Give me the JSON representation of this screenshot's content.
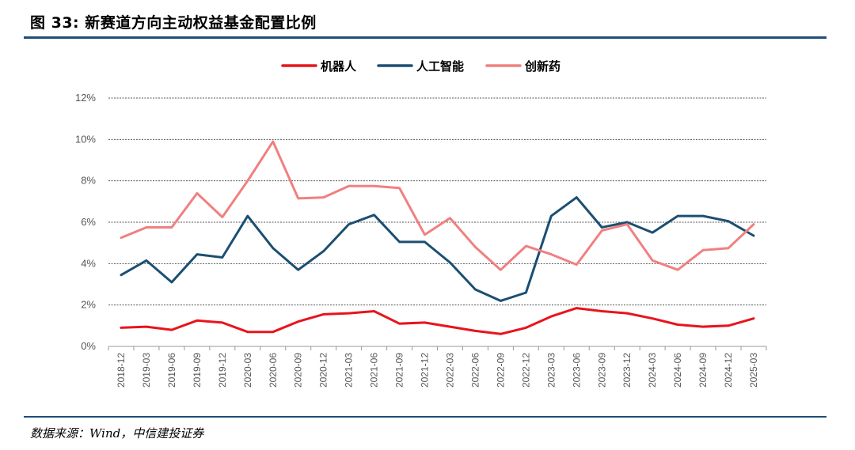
{
  "header": {
    "title": "图 33: 新赛道方向主动权益基金配置比例"
  },
  "footer": {
    "source": "数据来源：Wind，中信建投证券"
  },
  "chart_data": {
    "type": "line",
    "categories": [
      "2018-12",
      "2019-03",
      "2019-06",
      "2019-09",
      "2019-12",
      "2020-03",
      "2020-06",
      "2020-09",
      "2020-12",
      "2021-03",
      "2021-06",
      "2021-09",
      "2021-12",
      "2022-03",
      "2022-06",
      "2022-09",
      "2022-12",
      "2023-03",
      "2023-06",
      "2023-09",
      "2023-12",
      "2024-03",
      "2024-06",
      "2024-09",
      "2024-12",
      "2025-03"
    ],
    "series": [
      {
        "name": "机器人",
        "color": "#e8141c",
        "values": [
          0.9,
          0.95,
          0.8,
          1.25,
          1.15,
          0.7,
          0.7,
          1.2,
          1.55,
          1.6,
          1.7,
          1.1,
          1.15,
          0.95,
          0.75,
          0.6,
          0.9,
          1.45,
          1.85,
          1.7,
          1.6,
          1.35,
          1.05,
          0.95,
          1.0,
          1.35
        ]
      },
      {
        "name": "人工智能",
        "color": "#1b4f72",
        "values": [
          3.45,
          4.15,
          3.1,
          4.45,
          4.3,
          6.3,
          4.75,
          3.7,
          4.6,
          5.9,
          6.35,
          5.05,
          5.05,
          4.05,
          2.75,
          2.2,
          2.6,
          6.3,
          7.2,
          5.75,
          6.0,
          5.5,
          6.3,
          6.3,
          6.05,
          5.35
        ]
      },
      {
        "name": "创新药",
        "color": "#f08080",
        "values": [
          5.25,
          5.75,
          5.75,
          7.4,
          6.25,
          8.0,
          9.9,
          7.15,
          7.2,
          7.75,
          7.75,
          7.65,
          5.4,
          6.2,
          4.8,
          3.7,
          4.85,
          4.45,
          3.95,
          5.6,
          5.9,
          4.15,
          3.7,
          4.65,
          4.75,
          5.9
        ]
      }
    ],
    "yticks": [
      "0%",
      "2%",
      "4%",
      "6%",
      "8%",
      "10%",
      "12%"
    ],
    "ylim": [
      0,
      12
    ],
    "grid": true,
    "legend_position": "top-center"
  }
}
